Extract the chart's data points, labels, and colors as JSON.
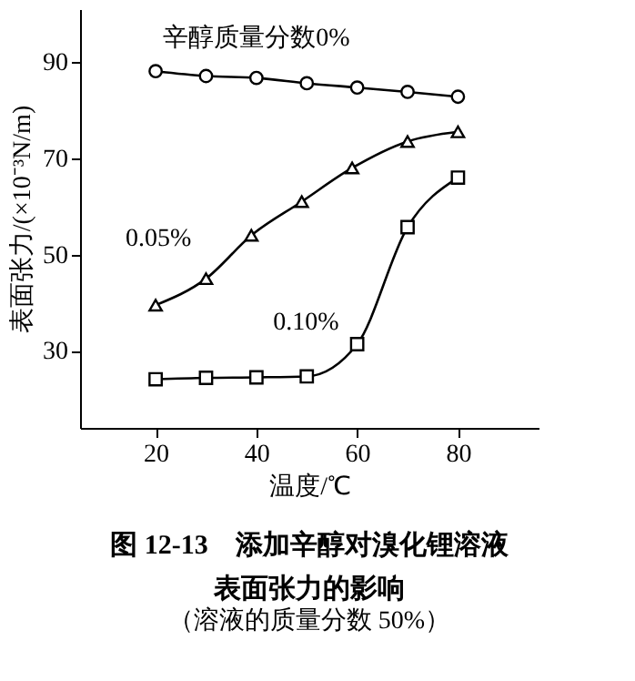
{
  "chart_data": {
    "type": "line",
    "title": "图 12-13　添加辛醇对溴化锂溶液表面张力的影响",
    "subtitle": "（溶液的质量分数 50%）",
    "xlabel": "温度/℃",
    "ylabel": "表面张力/(×10⁻³N/m)",
    "xlim": [
      5,
      96
    ],
    "ylim": [
      14,
      101
    ],
    "xticks": [
      20,
      40,
      60,
      80
    ],
    "yticks": [
      30,
      50,
      70,
      90
    ],
    "grid": false,
    "line_style": "solid",
    "series": [
      {
        "name": "辛醇质量分数0%",
        "color": "#000000",
        "marker": "circle",
        "x": [
          20,
          30,
          40,
          50,
          60,
          70,
          80
        ],
        "values": [
          88.1,
          87.1,
          86.7,
          85.6,
          84.7,
          83.8,
          82.8
        ]
      },
      {
        "name": "0.05%",
        "color": "#000000",
        "marker": "triangle",
        "x": [
          20,
          30,
          39,
          49,
          59,
          70,
          80
        ],
        "values": [
          39.5,
          45,
          54,
          61,
          68,
          73.5,
          75.5
        ]
      },
      {
        "name": "0.10%",
        "color": "#000000",
        "marker": "square",
        "x": [
          20,
          30,
          40,
          50,
          60,
          70,
          80
        ],
        "values": [
          24.1,
          24.4,
          24.5,
          24.7,
          31.4,
          55.7,
          66
        ]
      }
    ]
  }
}
